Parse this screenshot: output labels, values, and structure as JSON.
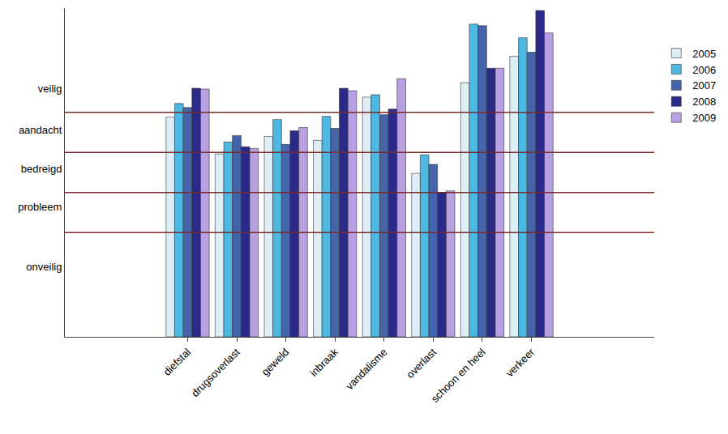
{
  "chart_data": {
    "type": "bar",
    "categories": [
      null,
      null,
      "diefstal",
      "drugsoverlast",
      "geweld",
      "inbraak",
      "vandalisme",
      "overlast",
      "schoon en heel",
      "verkeer",
      null,
      null
    ],
    "series": [
      {
        "name": "2005",
        "color": "#ddeef6",
        "values": [
          null,
          null,
          5.48,
          4.56,
          5.0,
          4.9,
          5.98,
          4.08,
          6.34,
          7.0,
          null,
          null
        ]
      },
      {
        "name": "2006",
        "color": "#4db8e2",
        "values": [
          null,
          null,
          5.82,
          4.86,
          5.42,
          5.5,
          6.04,
          4.54,
          7.8,
          7.46,
          null,
          null
        ]
      },
      {
        "name": "2007",
        "color": "#4464ac",
        "values": [
          null,
          null,
          5.72,
          5.02,
          4.8,
          5.2,
          5.54,
          4.3,
          7.76,
          7.1,
          null,
          null
        ]
      },
      {
        "name": "2008",
        "color": "#2a2a8a",
        "values": [
          null,
          null,
          6.2,
          4.74,
          5.14,
          6.2,
          5.68,
          3.6,
          6.7,
          8.14,
          null,
          null
        ]
      },
      {
        "name": "2009",
        "color": "#b9a0e2",
        "values": [
          null,
          null,
          6.18,
          4.7,
          5.22,
          6.14,
          6.44,
          3.64,
          6.7,
          7.58,
          null,
          null
        ]
      }
    ],
    "ylim": [
      0,
      8.2
    ],
    "yticks": [
      {
        "value": 6.2,
        "label": "veilig"
      },
      {
        "value": 5.16,
        "label": "aandacht"
      },
      {
        "value": 4.2,
        "label": "bedreigd"
      },
      {
        "value": 3.24,
        "label": "probleem"
      },
      {
        "value": 1.74,
        "label": "onveilig"
      }
    ],
    "thresholds": [
      5.6,
      4.6,
      3.6,
      2.6
    ],
    "grid": false,
    "legend": "right"
  }
}
